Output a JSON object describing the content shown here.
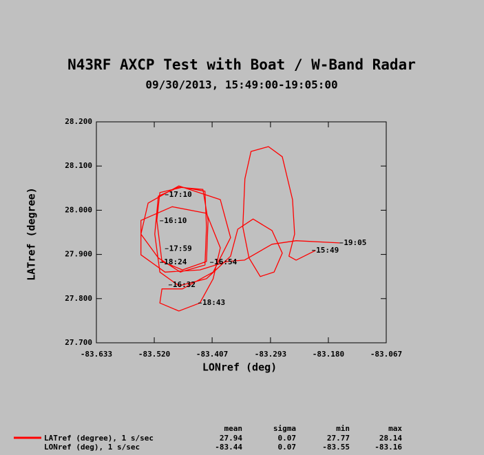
{
  "chart_data": {
    "type": "line",
    "title": "N43RF AXCP Test with Boat / W-Band Radar",
    "subtitle": "09/30/2013, 15:49:00-19:05:00",
    "x_label": "LONref (deg)",
    "y_label": "LATref (degree)",
    "xlim": [
      -83.633,
      -83.067
    ],
    "ylim": [
      27.7,
      28.2
    ],
    "xticks": [
      -83.633,
      {
        "value": -83.52,
        "label": "-83.520"
      },
      -83.407,
      -83.293,
      {
        "value": -83.18,
        "label": "-83.180"
      },
      -83.067
    ],
    "yticks": [
      {
        "value": 27.7,
        "label": "27.700"
      },
      {
        "value": 27.8,
        "label": "27.800"
      },
      {
        "value": 27.9,
        "label": "27.900"
      },
      {
        "value": 28.0,
        "label": "28.000"
      },
      {
        "value": 28.1,
        "label": "28.100"
      },
      {
        "value": 28.2,
        "label": "28.200"
      }
    ],
    "series": [
      {
        "name": "LATref (degree), 1 s/sec",
        "color": "#ff0000",
        "x": [
          -83.205,
          -83.243,
          -83.257,
          -83.246,
          -83.25,
          -83.27,
          -83.297,
          -83.331,
          -83.343,
          -83.347,
          -83.335,
          -83.313,
          -83.286,
          -83.27,
          -83.29,
          -83.327,
          -83.357,
          -83.371,
          -83.418,
          -83.472,
          -83.509,
          -83.519,
          -83.512,
          -83.472,
          -83.425,
          -83.415,
          -83.418,
          -83.465,
          -83.505,
          -83.515,
          -83.509,
          -83.465,
          -83.421,
          -83.418,
          -83.421,
          -83.469,
          -83.512,
          -83.546,
          -83.532,
          -83.472,
          -83.391,
          -83.371,
          -83.405,
          -83.465,
          -83.505,
          -83.509,
          -83.472,
          -83.431,
          -83.405,
          -83.391,
          -83.418,
          -83.485,
          -83.546,
          -83.546,
          -83.499,
          -83.431,
          -83.378,
          -83.344,
          -83.29,
          -83.243,
          -83.158
        ],
        "values": [
          27.909,
          27.887,
          27.896,
          27.946,
          28.024,
          28.121,
          28.144,
          28.133,
          28.071,
          27.962,
          27.892,
          27.85,
          27.86,
          27.903,
          27.954,
          27.98,
          27.957,
          27.896,
          27.845,
          27.829,
          27.86,
          27.946,
          28.032,
          28.052,
          28.047,
          27.977,
          27.884,
          27.865,
          27.884,
          27.977,
          28.04,
          28.052,
          28.043,
          27.962,
          27.876,
          27.86,
          27.892,
          27.946,
          28.016,
          28.055,
          28.024,
          27.938,
          27.86,
          27.822,
          27.822,
          27.79,
          27.772,
          27.79,
          27.845,
          27.915,
          27.993,
          28.008,
          27.977,
          27.899,
          27.86,
          27.865,
          27.884,
          27.887,
          27.923,
          27.931,
          27.926
        ]
      }
    ],
    "annotations": [
      {
        "text": "17:10",
        "x": -83.499,
        "y": 28.035
      },
      {
        "text": "16:10",
        "x": -83.509,
        "y": 27.976
      },
      {
        "text": "17:59",
        "x": -83.499,
        "y": 27.913
      },
      {
        "text": "18:24",
        "x": -83.509,
        "y": 27.882
      },
      {
        "text": "16:54",
        "x": -83.411,
        "y": 27.882
      },
      {
        "text": "16:32",
        "x": -83.492,
        "y": 27.831
      },
      {
        "text": "18:43",
        "x": -83.434,
        "y": 27.79
      },
      {
        "text": "15:49",
        "x": -83.212,
        "y": 27.909
      },
      {
        "text": "19:05",
        "x": -83.158,
        "y": 27.926
      }
    ],
    "stats": {
      "columns": [
        "mean",
        "sigma",
        "min",
        "max"
      ],
      "rows": [
        {
          "values": [
            27.94,
            0.07,
            27.77,
            28.14
          ]
        },
        {
          "label": "LONref (deg), 1 s/sec",
          "values": [
            -83.44,
            0.07,
            -83.55,
            -83.16
          ]
        }
      ]
    }
  }
}
